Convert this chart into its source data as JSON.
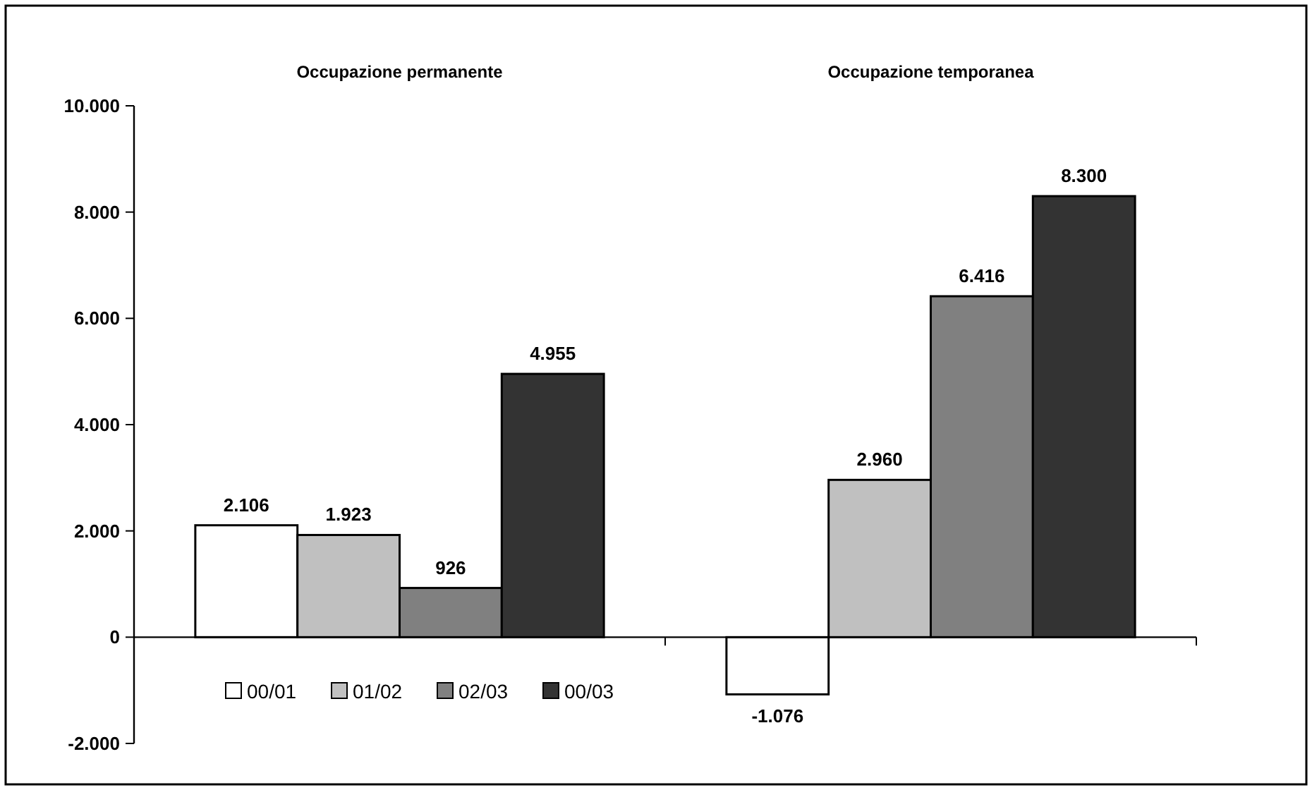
{
  "chart_data": {
    "type": "bar",
    "categories": [
      "Occupazione permanente",
      "Occupazione temporanea"
    ],
    "series": [
      {
        "name": "00/01",
        "color": "#ffffff",
        "values": [
          2106,
          -1076
        ],
        "value_labels": [
          "2.106",
          "-1.076"
        ]
      },
      {
        "name": "01/02",
        "color": "#c0c0c0",
        "values": [
          1923,
          2960
        ],
        "value_labels": [
          "1.923",
          "2.960"
        ]
      },
      {
        "name": "02/03",
        "color": "#808080",
        "values": [
          926,
          6416
        ],
        "value_labels": [
          "926",
          "6.416"
        ]
      },
      {
        "name": "00/03",
        "color": "#333333",
        "values": [
          4955,
          8300
        ],
        "value_labels": [
          "4.955",
          "8.300"
        ]
      }
    ],
    "ylim": [
      -2000,
      10000
    ],
    "yticks": [
      {
        "value": -2000,
        "label": "-2.000"
      },
      0,
      {
        "value": 2000,
        "label": "2.000"
      },
      {
        "value": 4000,
        "label": "4.000"
      },
      {
        "value": 6000,
        "label": "6.000"
      },
      {
        "value": 8000,
        "label": "8.000"
      },
      {
        "value": 10000,
        "label": "10.000"
      }
    ],
    "legend": "bottom left"
  }
}
